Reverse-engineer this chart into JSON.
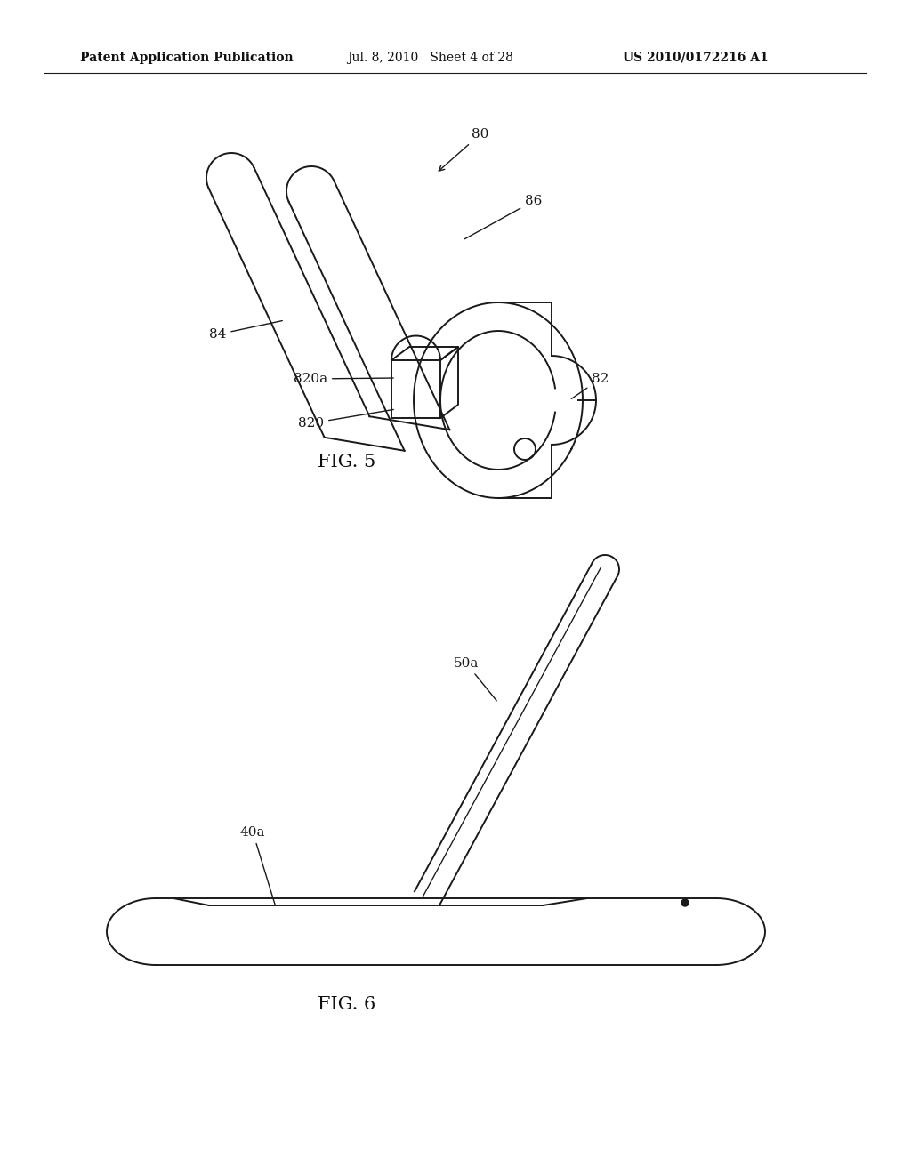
{
  "background_color": "#ffffff",
  "header_left": "Patent Application Publication",
  "header_mid": "Jul. 8, 2010   Sheet 4 of 28",
  "header_right": "US 2010/0172216 A1",
  "fig5_label": "FIG. 5",
  "fig6_label": "FIG. 6",
  "line_color": "#1a1a1a",
  "text_color": "#111111",
  "header_fontsize": 10,
  "label_fontsize": 11,
  "fig_label_fontsize": 15
}
